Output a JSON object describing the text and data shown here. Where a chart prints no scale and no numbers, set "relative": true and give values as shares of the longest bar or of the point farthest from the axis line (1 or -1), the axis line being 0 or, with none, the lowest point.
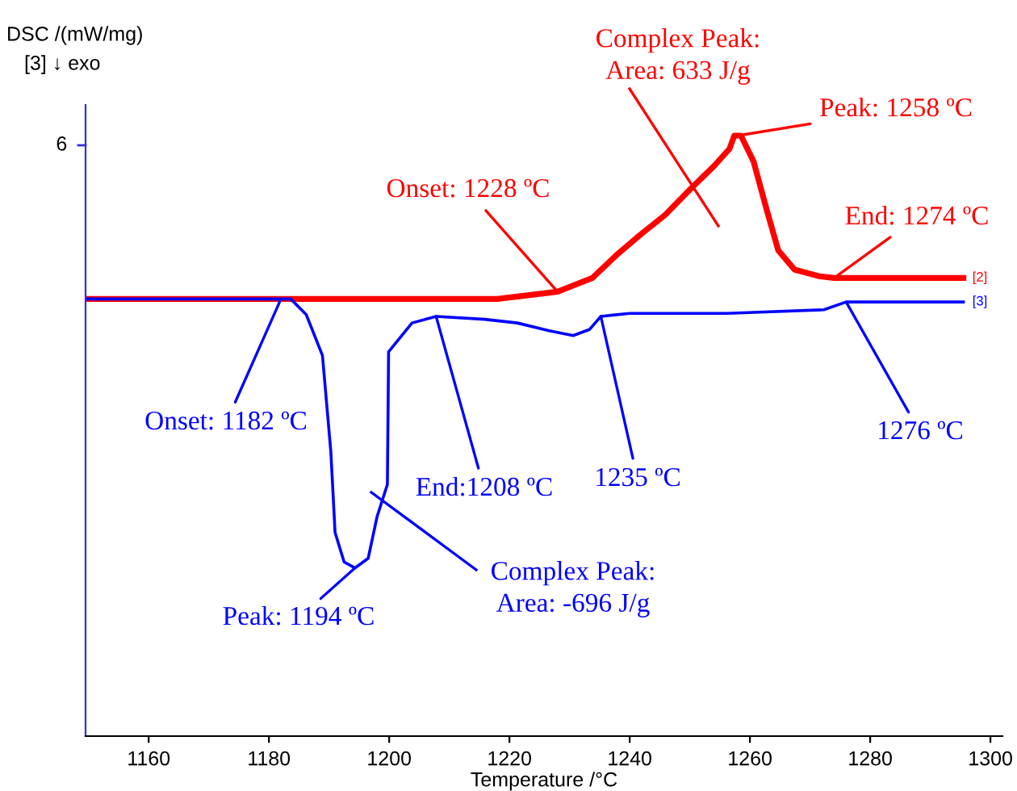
{
  "chart_data": {
    "type": "line",
    "relative": true,
    "xlabel": "Temperature /°C",
    "ylabel": "DSC /(mW/mg)",
    "xlim": [
      1149.5,
      1302
    ],
    "xticks": [
      1160,
      1180,
      1200,
      1220,
      1240,
      1260,
      1280,
      1300
    ],
    "grid": false,
    "legend": false,
    "marker": "none",
    "line_style": "solid",
    "series": [
      {
        "name": "[2]",
        "color": "#ff0000",
        "x": [
          1149.5,
          1218,
          1228,
          1233.8,
          1237.8,
          1241.9,
          1245.9,
          1249.9,
          1254,
          1256.6,
          1257.4,
          1258.5,
          1260.6,
          1262.8,
          1264.7,
          1267.4,
          1271.4,
          1274,
          1284.8,
          1295.5
        ],
        "values": [
          0.728,
          0.728,
          0.74,
          0.763,
          0.801,
          0.836,
          0.868,
          0.909,
          0.949,
          0.978,
          1.0,
          1.0,
          0.957,
          0.876,
          0.809,
          0.777,
          0.766,
          0.763,
          0.763,
          0.763
        ]
      },
      {
        "name": "[3]",
        "color": "#0000ff",
        "x": [
          1149.5,
          1183.6,
          1186.2,
          1188.9,
          1190.3,
          1191,
          1192.5,
          1194.3,
          1196.5,
          1198,
          1199.7,
          1199.9,
          1203.8,
          1207.8,
          1215.9,
          1221.3,
          1226.6,
          1230.6,
          1233.3,
          1235.2,
          1240,
          1256.2,
          1272.3,
          1276,
          1295.5
        ],
        "values": [
          0.728,
          0.728,
          0.702,
          0.634,
          0.473,
          0.339,
          0.29,
          0.28,
          0.296,
          0.366,
          0.419,
          0.64,
          0.688,
          0.699,
          0.694,
          0.688,
          0.675,
          0.667,
          0.677,
          0.699,
          0.704,
          0.704,
          0.71,
          0.723,
          0.723
        ]
      }
    ],
    "annotations": [
      "Complex Peak:\nArea: 633 J/g",
      {
        "text": "Peak: 1258 ºC",
        "x": 1258,
        "y": 1.0
      },
      {
        "text": "Onset: 1228 ºC",
        "x": 1228,
        "y": 0.74
      },
      {
        "text": "End: 1274 ºC",
        "x": 1274,
        "y": 0.763
      },
      {
        "text": "Onset: 1182 ºC",
        "x": 1182,
        "y": 0.728
      },
      {
        "text": "End:1208 ºC",
        "x": 1207.8,
        "y": 0.699
      },
      {
        "text": "1235 ºC",
        "x": 1235.2,
        "y": 0.699
      },
      {
        "text": "1276 ºC",
        "x": 1276,
        "y": 0.723
      },
      "Complex Peak:\nArea: -696 J/g",
      {
        "text": "Peak: 1194 ºC",
        "x": 1194.3,
        "y": 0.28
      },
      "[3] ↓ exo",
      "6"
    ]
  }
}
